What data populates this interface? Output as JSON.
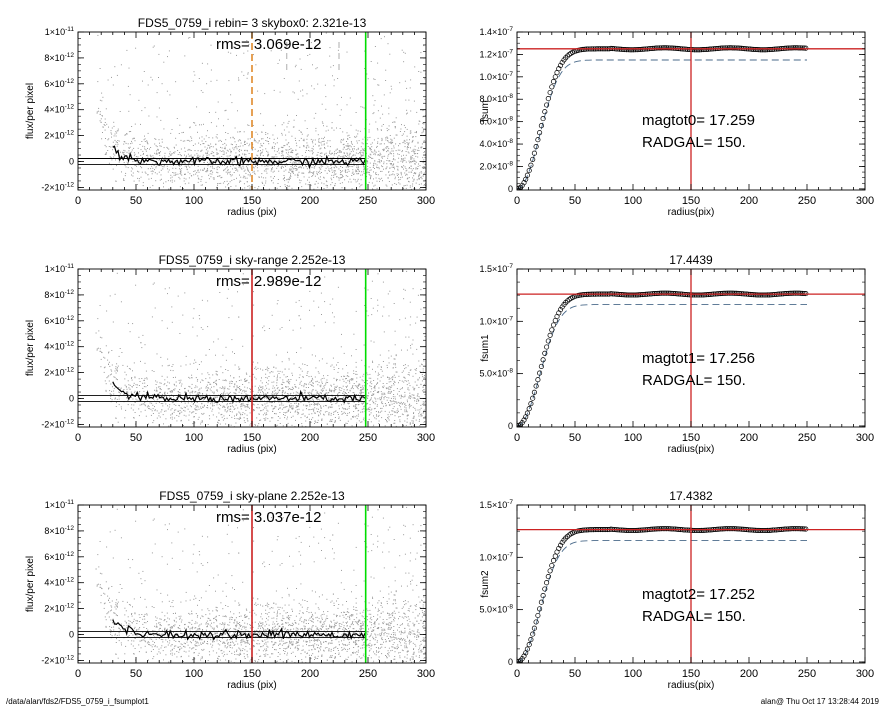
{
  "footer": {
    "left": "/data/alan/fds2/FDS5_0759_i_fsumplot1",
    "right": "alan@  Thu Oct 17 13:28:44 2019"
  },
  "colors": {
    "scatter": "#9a9a9a",
    "profile": "#000000",
    "green_line": "#00dd00",
    "red_line": "#cc2222",
    "orange_dashed": "#e08a2c",
    "gray_dashed": "#9a9a9a",
    "curve_points": "#000000",
    "blue_dashed": "#4a6a8a"
  },
  "chart_data": [
    {
      "id": "p1",
      "type": "scatter",
      "title": "FDS5_0759_i rebin= 3    skybox0:  2.321e-13",
      "xlabel": "radius (pix)",
      "ylabel": "flux/per pixel",
      "xlim": [
        0,
        300
      ],
      "ylim": [
        -2.2e-12,
        1e-11
      ],
      "xticks": [
        {
          "v": 0,
          "t": "0"
        },
        {
          "v": 50,
          "t": "50"
        },
        {
          "v": 100,
          "t": "100"
        },
        {
          "v": 150,
          "t": "150"
        },
        {
          "v": 200,
          "t": "200"
        },
        {
          "v": 250,
          "t": "250"
        },
        {
          "v": 300,
          "t": "300"
        }
      ],
      "yticks": [
        {
          "v": -2e-12,
          "t": "-2×10",
          "e": "-12"
        },
        {
          "v": 0,
          "t": "0",
          "e": ""
        },
        {
          "v": 2e-12,
          "t": "2×10",
          "e": "-12"
        },
        {
          "v": 4e-12,
          "t": "4×10",
          "e": "-12"
        },
        {
          "v": 6e-12,
          "t": "6×10",
          "e": "-12"
        },
        {
          "v": 8e-12,
          "t": "8×10",
          "e": "-12"
        },
        {
          "v": 1e-11,
          "t": "1×10",
          "e": "-11"
        }
      ],
      "annotation": "rms= 3.069e-12",
      "hlines": [
        2.321e-13,
        -2.321e-13
      ],
      "vlines": [
        {
          "x": 150,
          "color": "orange_dashed",
          "dash": true
        },
        {
          "x": 180,
          "color": "gray_dashed",
          "dash": true
        },
        {
          "x": 225,
          "color": "gray_dashed",
          "dash": true
        },
        {
          "x": 248,
          "color": "green_line",
          "dash": false
        }
      ],
      "profile_model": {
        "amp": 2.3e-11,
        "scale": 10
      }
    },
    {
      "id": "p2",
      "type": "line",
      "title": "",
      "xlabel": "radius(pix)",
      "ylabel": "fsum",
      "xlim": [
        0,
        300
      ],
      "ylim": [
        -1e-09,
        1.4e-07
      ],
      "xticks": [
        {
          "v": 0,
          "t": "0"
        },
        {
          "v": 50,
          "t": "50"
        },
        {
          "v": 100,
          "t": "100"
        },
        {
          "v": 150,
          "t": "150"
        },
        {
          "v": 200,
          "t": "200"
        },
        {
          "v": 250,
          "t": "250"
        },
        {
          "v": 300,
          "t": "300"
        }
      ],
      "yticks": [
        {
          "v": 0,
          "t": "0",
          "e": ""
        },
        {
          "v": 2e-08,
          "t": "2.0×10",
          "e": "-8"
        },
        {
          "v": 4e-08,
          "t": "4.0×10",
          "e": "-8"
        },
        {
          "v": 6e-08,
          "t": "6.0×10",
          "e": "-8"
        },
        {
          "v": 8e-08,
          "t": "8.0×10",
          "e": "-8"
        },
        {
          "v": 1e-07,
          "t": "1.0×10",
          "e": "-7"
        },
        {
          "v": 1.2e-07,
          "t": "1.2×10",
          "e": "-7"
        },
        {
          "v": 1.4e-07,
          "t": "1.4×10",
          "e": "-7"
        }
      ],
      "annotations": [
        "magtot0=  17.259",
        "RADGAL=    150."
      ],
      "hline": 1.25e-07,
      "vline": 150,
      "series_plateau": 1.25e-07,
      "dashed_plateau": 1.15e-07,
      "curve_model": {
        "scale": 22,
        "rmax": 250
      }
    },
    {
      "id": "p3",
      "type": "scatter",
      "title": "FDS5_0759_i sky-range  2.252e-13",
      "xlabel": "radius (pix)",
      "ylabel": "flux/per pixel",
      "xlim": [
        0,
        300
      ],
      "ylim": [
        -2.2e-12,
        1e-11
      ],
      "xticks": [
        {
          "v": 0,
          "t": "0"
        },
        {
          "v": 50,
          "t": "50"
        },
        {
          "v": 100,
          "t": "100"
        },
        {
          "v": 150,
          "t": "150"
        },
        {
          "v": 200,
          "t": "200"
        },
        {
          "v": 250,
          "t": "250"
        },
        {
          "v": 300,
          "t": "300"
        }
      ],
      "yticks": [
        {
          "v": -2e-12,
          "t": "-2×10",
          "e": "-12"
        },
        {
          "v": 0,
          "t": "0",
          "e": ""
        },
        {
          "v": 2e-12,
          "t": "2×10",
          "e": "-12"
        },
        {
          "v": 4e-12,
          "t": "4×10",
          "e": "-12"
        },
        {
          "v": 6e-12,
          "t": "6×10",
          "e": "-12"
        },
        {
          "v": 8e-12,
          "t": "8×10",
          "e": "-12"
        },
        {
          "v": 1e-11,
          "t": "1×10",
          "e": "-11"
        }
      ],
      "annotation": "rms= 2.989e-12",
      "hlines": [
        2.252e-13,
        -2.252e-13
      ],
      "vlines": [
        {
          "x": 150,
          "color": "red_line",
          "dash": false
        },
        {
          "x": 248,
          "color": "green_line",
          "dash": false
        }
      ],
      "profile_model": {
        "amp": 2.3e-11,
        "scale": 10
      }
    },
    {
      "id": "p4",
      "type": "line",
      "title": "17.4439",
      "xlabel": "radius(pix)",
      "ylabel": "fsum1",
      "xlim": [
        0,
        300
      ],
      "ylim": [
        -1e-09,
        1.5e-07
      ],
      "xticks": [
        {
          "v": 0,
          "t": "0"
        },
        {
          "v": 50,
          "t": "50"
        },
        {
          "v": 100,
          "t": "100"
        },
        {
          "v": 150,
          "t": "150"
        },
        {
          "v": 200,
          "t": "200"
        },
        {
          "v": 250,
          "t": "250"
        },
        {
          "v": 300,
          "t": "300"
        }
      ],
      "yticks": [
        {
          "v": 0,
          "t": "0",
          "e": ""
        },
        {
          "v": 5e-08,
          "t": "5.0×10",
          "e": "-8"
        },
        {
          "v": 1e-07,
          "t": "1.0×10",
          "e": "-7"
        },
        {
          "v": 1.5e-07,
          "t": "1.5×10",
          "e": "-7"
        }
      ],
      "annotations": [
        "magtot1=  17.256",
        "RADGAL=    150."
      ],
      "hline": 1.26e-07,
      "vline": 150,
      "series_plateau": 1.26e-07,
      "dashed_plateau": 1.16e-07,
      "curve_model": {
        "scale": 22,
        "rmax": 250
      }
    },
    {
      "id": "p5",
      "type": "scatter",
      "title": "FDS5_0759_i sky-plane  2.252e-13",
      "xlabel": "radius (pix)",
      "ylabel": "flux/per pixel",
      "xlim": [
        0,
        300
      ],
      "ylim": [
        -2.2e-12,
        1e-11
      ],
      "xticks": [
        {
          "v": 0,
          "t": "0"
        },
        {
          "v": 50,
          "t": "50"
        },
        {
          "v": 100,
          "t": "100"
        },
        {
          "v": 150,
          "t": "150"
        },
        {
          "v": 200,
          "t": "200"
        },
        {
          "v": 250,
          "t": "250"
        },
        {
          "v": 300,
          "t": "300"
        }
      ],
      "yticks": [
        {
          "v": -2e-12,
          "t": "-2×10",
          "e": "-12"
        },
        {
          "v": 0,
          "t": "0",
          "e": ""
        },
        {
          "v": 2e-12,
          "t": "2×10",
          "e": "-12"
        },
        {
          "v": 4e-12,
          "t": "4×10",
          "e": "-12"
        },
        {
          "v": 6e-12,
          "t": "6×10",
          "e": "-12"
        },
        {
          "v": 8e-12,
          "t": "8×10",
          "e": "-12"
        },
        {
          "v": 1e-11,
          "t": "1×10",
          "e": "-11"
        }
      ],
      "annotation": "rms= 3.037e-12",
      "hlines": [
        2.252e-13,
        -2.252e-13
      ],
      "vlines": [
        {
          "x": 150,
          "color": "red_line",
          "dash": false
        },
        {
          "x": 248,
          "color": "green_line",
          "dash": false
        }
      ],
      "profile_model": {
        "amp": 2.3e-11,
        "scale": 10
      }
    },
    {
      "id": "p6",
      "type": "line",
      "title": "17.4382",
      "xlabel": "radius(pix)",
      "ylabel": "fsum2",
      "xlim": [
        0,
        300
      ],
      "ylim": [
        -1e-09,
        1.5e-07
      ],
      "xticks": [
        {
          "v": 0,
          "t": "0"
        },
        {
          "v": 50,
          "t": "50"
        },
        {
          "v": 100,
          "t": "100"
        },
        {
          "v": 150,
          "t": "150"
        },
        {
          "v": 200,
          "t": "200"
        },
        {
          "v": 250,
          "t": "250"
        },
        {
          "v": 300,
          "t": "300"
        }
      ],
      "yticks": [
        {
          "v": 0,
          "t": "0",
          "e": ""
        },
        {
          "v": 5e-08,
          "t": "5.0×10",
          "e": "-8"
        },
        {
          "v": 1e-07,
          "t": "1.0×10",
          "e": "-7"
        },
        {
          "v": 1.5e-07,
          "t": "1.5×10",
          "e": "-7"
        }
      ],
      "annotations": [
        "magtot2=  17.252",
        "RADGAL=    150."
      ],
      "hline": 1.265e-07,
      "vline": 150,
      "series_plateau": 1.265e-07,
      "dashed_plateau": 1.16e-07,
      "curve_model": {
        "scale": 22,
        "rmax": 250
      }
    }
  ]
}
